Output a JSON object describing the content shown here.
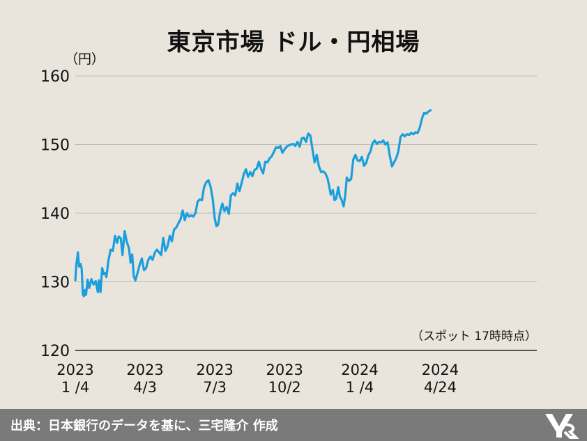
{
  "title": "東京市場 ドル・円相場",
  "unit_label": "（円）",
  "note": "（スポット 17時時点）",
  "source": "出典：日本銀行のデータを基に、三宅隆介 作成",
  "colors": {
    "line": "#1a9fdc",
    "grid": "#bdbab4",
    "axis": "#222222",
    "background": "#e9e5dd",
    "footer": "#7a7a7a"
  },
  "chart_data": {
    "type": "line",
    "title": "東京市場 ドル・円相場",
    "ylabel": "（円）",
    "ylim": [
      120,
      160
    ],
    "yticks": [
      120,
      130,
      140,
      150,
      160
    ],
    "xlim": [
      0,
      86
    ],
    "xticks": [
      {
        "x": 0,
        "line1": "2023",
        "line2": "1 /4"
      },
      {
        "x": 13,
        "line1": "2023",
        "line2": "4/3"
      },
      {
        "x": 26,
        "line1": "2023",
        "line2": "7/3"
      },
      {
        "x": 39,
        "line1": "2023",
        "line2": "10/2"
      },
      {
        "x": 53,
        "line1": "2024",
        "line2": "1 /4"
      },
      {
        "x": 68,
        "line1": "2024",
        "line2": "4/24"
      }
    ],
    "grid": true,
    "series": [
      {
        "values": [
          [
            0.0,
            130.2
          ],
          [
            0.2,
            132.5
          ],
          [
            0.5,
            134.3
          ],
          [
            0.7,
            132.2
          ],
          [
            1.0,
            132.6
          ],
          [
            1.2,
            131.9
          ],
          [
            1.4,
            128.2
          ],
          [
            1.6,
            127.9
          ],
          [
            1.8,
            128.8
          ],
          [
            2.0,
            128.1
          ],
          [
            2.3,
            130.3
          ],
          [
            2.6,
            129.1
          ],
          [
            3.0,
            130.4
          ],
          [
            3.4,
            129.6
          ],
          [
            3.8,
            130.1
          ],
          [
            4.2,
            128.5
          ],
          [
            4.4,
            130.2
          ],
          [
            4.7,
            128.5
          ],
          [
            5.0,
            132.0
          ],
          [
            5.3,
            131.1
          ],
          [
            5.6,
            131.3
          ],
          [
            5.8,
            130.7
          ],
          [
            6.2,
            133.2
          ],
          [
            6.6,
            134.7
          ],
          [
            7.0,
            134.5
          ],
          [
            7.4,
            136.7
          ],
          [
            7.8,
            135.7
          ],
          [
            8.1,
            136.6
          ],
          [
            8.5,
            136.3
          ],
          [
            8.8,
            133.9
          ],
          [
            9.2,
            137.4
          ],
          [
            9.6,
            135.8
          ],
          [
            10.0,
            134.9
          ],
          [
            10.3,
            132.8
          ],
          [
            10.6,
            134.0
          ],
          [
            10.9,
            130.8
          ],
          [
            11.2,
            130.2
          ],
          [
            11.6,
            131.3
          ],
          [
            12.0,
            132.5
          ],
          [
            12.4,
            133.4
          ],
          [
            12.8,
            131.7
          ],
          [
            13.2,
            132.0
          ],
          [
            13.6,
            133.2
          ],
          [
            14.0,
            133.7
          ],
          [
            14.4,
            133.2
          ],
          [
            14.8,
            134.2
          ],
          [
            15.2,
            134.7
          ],
          [
            15.6,
            134.3
          ],
          [
            16.0,
            133.9
          ],
          [
            16.4,
            136.4
          ],
          [
            16.8,
            134.5
          ],
          [
            17.2,
            135.2
          ],
          [
            17.6,
            136.7
          ],
          [
            18.0,
            135.9
          ],
          [
            18.4,
            137.6
          ],
          [
            18.8,
            137.9
          ],
          [
            19.2,
            138.5
          ],
          [
            19.6,
            139.1
          ],
          [
            20.0,
            140.4
          ],
          [
            20.4,
            139.0
          ],
          [
            20.8,
            140.0
          ],
          [
            21.2,
            139.5
          ],
          [
            21.6,
            139.7
          ],
          [
            22.0,
            139.5
          ],
          [
            22.4,
            140.0
          ],
          [
            22.8,
            141.7
          ],
          [
            23.2,
            142.0
          ],
          [
            23.6,
            141.9
          ],
          [
            24.0,
            143.8
          ],
          [
            24.4,
            144.5
          ],
          [
            24.8,
            144.8
          ],
          [
            25.2,
            143.9
          ],
          [
            25.6,
            142.1
          ],
          [
            26.0,
            139.2
          ],
          [
            26.3,
            138.1
          ],
          [
            26.6,
            138.3
          ],
          [
            27.0,
            140.2
          ],
          [
            27.4,
            141.4
          ],
          [
            27.8,
            140.3
          ],
          [
            28.2,
            140.9
          ],
          [
            28.6,
            139.9
          ],
          [
            29.0,
            142.6
          ],
          [
            29.4,
            142.9
          ],
          [
            29.8,
            142.6
          ],
          [
            30.2,
            144.3
          ],
          [
            30.6,
            143.2
          ],
          [
            31.0,
            144.4
          ],
          [
            31.4,
            145.7
          ],
          [
            31.8,
            146.4
          ],
          [
            32.2,
            145.3
          ],
          [
            32.6,
            146.0
          ],
          [
            33.0,
            145.4
          ],
          [
            33.4,
            146.3
          ],
          [
            33.8,
            146.5
          ],
          [
            34.2,
            147.5
          ],
          [
            34.6,
            146.5
          ],
          [
            35.0,
            145.8
          ],
          [
            35.4,
            147.5
          ],
          [
            35.8,
            147.4
          ],
          [
            36.2,
            148.0
          ],
          [
            36.6,
            148.3
          ],
          [
            37.0,
            148.9
          ],
          [
            37.4,
            149.6
          ],
          [
            37.8,
            149.5
          ],
          [
            38.2,
            149.8
          ],
          [
            38.6,
            148.8
          ],
          [
            39.0,
            149.3
          ],
          [
            39.4,
            149.7
          ],
          [
            39.8,
            149.9
          ],
          [
            40.2,
            150.0
          ],
          [
            40.6,
            150.1
          ],
          [
            41.0,
            149.8
          ],
          [
            41.4,
            150.4
          ],
          [
            41.8,
            149.7
          ],
          [
            42.2,
            150.9
          ],
          [
            42.6,
            151.0
          ],
          [
            43.0,
            150.4
          ],
          [
            43.4,
            151.6
          ],
          [
            43.8,
            151.3
          ],
          [
            44.2,
            149.3
          ],
          [
            44.6,
            147.4
          ],
          [
            45.0,
            148.5
          ],
          [
            45.4,
            146.8
          ],
          [
            45.8,
            146.0
          ],
          [
            46.2,
            146.1
          ],
          [
            46.6,
            145.8
          ],
          [
            47.0,
            145.1
          ],
          [
            47.3,
            144.0
          ],
          [
            47.6,
            142.7
          ],
          [
            48.0,
            143.4
          ],
          [
            48.3,
            141.9
          ],
          [
            48.6,
            142.1
          ],
          [
            49.0,
            143.8
          ],
          [
            49.3,
            142.4
          ],
          [
            49.6,
            142.0
          ],
          [
            50.0,
            141.0
          ],
          [
            50.3,
            142.6
          ],
          [
            50.6,
            145.2
          ],
          [
            51.0,
            144.7
          ],
          [
            51.4,
            145.0
          ],
          [
            51.8,
            147.8
          ],
          [
            52.2,
            148.5
          ],
          [
            52.6,
            147.7
          ],
          [
            53.0,
            147.6
          ],
          [
            53.4,
            148.2
          ],
          [
            53.8,
            146.9
          ],
          [
            54.2,
            147.3
          ],
          [
            54.6,
            148.4
          ],
          [
            55.0,
            149.0
          ],
          [
            55.4,
            150.2
          ],
          [
            55.8,
            150.6
          ],
          [
            56.2,
            150.1
          ],
          [
            56.6,
            150.4
          ],
          [
            57.0,
            150.3
          ],
          [
            57.4,
            150.6
          ],
          [
            57.8,
            150.0
          ],
          [
            58.2,
            150.3
          ],
          [
            58.6,
            148.4
          ],
          [
            59.0,
            146.8
          ],
          [
            59.4,
            147.4
          ],
          [
            59.8,
            148.0
          ],
          [
            60.2,
            149.0
          ],
          [
            60.6,
            151.1
          ],
          [
            61.0,
            151.5
          ],
          [
            61.4,
            151.2
          ],
          [
            61.8,
            151.5
          ],
          [
            62.2,
            151.4
          ],
          [
            62.6,
            151.7
          ],
          [
            63.0,
            151.5
          ],
          [
            63.4,
            151.8
          ],
          [
            63.8,
            151.7
          ],
          [
            64.2,
            152.5
          ],
          [
            64.6,
            153.8
          ],
          [
            65.0,
            154.6
          ],
          [
            65.4,
            154.5
          ],
          [
            65.8,
            154.8
          ],
          [
            66.2,
            155.0
          ]
        ]
      }
    ]
  }
}
